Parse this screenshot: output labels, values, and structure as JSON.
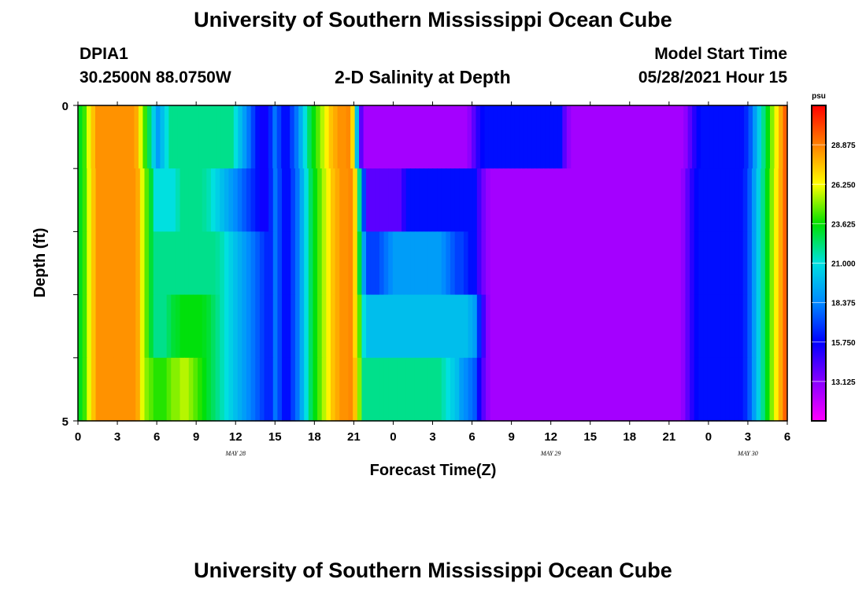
{
  "page": {
    "title": "University of Southern Mississippi Ocean Cube",
    "footer_title": "University of Southern Mississippi Ocean Cube",
    "station": "DPIA1",
    "coords": "30.2500N  88.0750W",
    "plot_title": "2-D Salinity at Depth",
    "model_start_label": "Model Start Time",
    "model_start_value": "05/28/2021 Hour 15"
  },
  "chart_data": {
    "type": "heatmap",
    "title": "2-D Salinity at Depth",
    "xlabel": "Forecast Time(Z)",
    "ylabel": "Depth (ft)",
    "x_tick_labels": [
      "0",
      "3",
      "6",
      "9",
      "12",
      "15",
      "18",
      "21",
      "0",
      "3",
      "6",
      "9",
      "12",
      "15",
      "18",
      "21",
      "0",
      "3",
      "6"
    ],
    "date_labels": [
      {
        "label": "MAY 28",
        "hour": 12
      },
      {
        "label": "MAY 29",
        "hour": 36
      },
      {
        "label": "MAY 30",
        "hour": 51
      }
    ],
    "x_range_hours": [
      0,
      54
    ],
    "y_tick_labels": [
      "0",
      "5"
    ],
    "y_range_ft": [
      0,
      5
    ],
    "depth_layers": 5,
    "colorbar": {
      "unit": "psu",
      "min": 10.5,
      "max": 31.5,
      "ticks": [
        "28.875",
        "26.250",
        "23.625",
        "21.000",
        "18.375",
        "15.750",
        "13.125"
      ],
      "tick_values": [
        28.875,
        26.25,
        23.625,
        21.0,
        18.375,
        15.75,
        13.125
      ]
    },
    "salinity_psu_by_layer": [
      [
        23.3,
        24.2,
        26.0,
        27.5,
        28.5,
        28.5,
        28.5,
        28.5,
        28.5,
        28.5,
        28.5,
        28.5,
        28.5,
        28.0,
        26.0,
        24.2,
        22.5,
        20.5,
        19.0,
        20.0,
        21.0,
        22.0,
        22.0,
        22.0,
        22.0,
        22.0,
        22.0,
        22.0,
        22.0,
        22.0,
        22.0,
        22.0,
        22.0,
        22.0,
        22.0,
        22.0,
        21.0,
        20.0,
        19.0,
        18.0,
        17.0,
        16.0,
        15.5,
        15.5,
        16.5,
        18.0,
        17.0,
        16.0,
        16.0,
        17.0,
        18.0,
        19.5,
        21.0,
        22.5,
        23.5,
        24.5,
        25.5,
        26.5,
        27.5,
        28.0,
        28.5,
        28.5,
        28.7,
        27.0,
        20.0,
        14.0,
        12.5,
        12.5,
        12.5,
        12.5,
        12.5,
        12.5,
        12.5,
        12.5,
        12.5,
        12.5,
        12.5,
        12.5,
        12.5,
        12.5,
        12.5,
        12.5,
        12.5,
        12.5,
        12.5,
        12.5,
        12.5,
        12.5,
        12.5,
        12.5,
        13.0,
        14.0,
        15.0,
        15.8,
        16.0,
        16.0,
        16.0,
        16.0,
        16.0,
        16.0,
        16.0,
        16.0,
        16.0,
        16.0,
        16.0,
        16.0,
        16.0,
        16.0,
        16.0,
        16.0,
        16.0,
        16.0,
        14.0,
        13.0,
        12.5,
        12.5,
        12.5,
        12.5,
        12.5,
        12.5,
        12.5,
        12.5,
        12.5,
        12.5,
        12.5,
        12.5,
        12.5,
        12.5,
        12.5,
        12.5,
        12.5,
        12.5,
        12.5,
        12.5,
        12.5,
        12.5,
        12.5,
        12.5,
        12.5,
        12.5,
        13.0,
        14.0,
        15.0,
        15.8,
        16.0,
        16.0,
        16.0,
        16.0,
        16.0,
        16.0,
        16.0,
        16.0,
        16.0,
        16.0,
        16.5,
        17.5,
        19.0,
        20.5,
        22.0,
        23.5,
        25.0,
        26.5,
        28.0,
        29.5
      ],
      [
        23.3,
        24.2,
        26.0,
        27.5,
        28.5,
        28.5,
        28.5,
        28.5,
        28.5,
        28.5,
        28.5,
        28.5,
        28.5,
        28.0,
        26.0,
        24.5,
        23.0,
        21.0,
        21.0,
        21.0,
        21.0,
        21.0,
        21.5,
        22.0,
        22.0,
        22.0,
        22.0,
        22.0,
        21.8,
        21.5,
        21.0,
        20.5,
        20.0,
        19.5,
        19.0,
        18.5,
        18.0,
        17.5,
        17.0,
        16.5,
        16.0,
        15.5,
        15.5,
        16.5,
        18.0,
        17.0,
        16.0,
        16.0,
        17.0,
        18.0,
        19.5,
        21.0,
        22.5,
        23.5,
        24.5,
        25.5,
        26.5,
        27.5,
        28.0,
        28.5,
        28.5,
        28.7,
        27.0,
        22.0,
        17.0,
        14.0,
        14.0,
        14.0,
        14.0,
        14.0,
        14.0,
        14.0,
        14.0,
        15.0,
        16.0,
        16.0,
        16.0,
        16.0,
        16.0,
        16.0,
        16.0,
        16.0,
        16.0,
        16.0,
        16.0,
        16.0,
        16.0,
        16.0,
        16.0,
        16.0,
        14.5,
        13.5,
        12.8,
        12.5,
        12.5,
        12.5,
        12.5,
        12.5,
        12.5,
        12.5,
        12.5,
        12.5,
        12.5,
        12.5,
        12.5,
        12.5,
        12.5,
        12.5,
        12.5,
        12.5,
        12.5,
        12.5,
        12.5,
        12.5,
        12.5,
        12.5,
        12.5,
        12.5,
        12.5,
        12.5,
        12.5,
        12.5,
        12.5,
        12.5,
        12.5,
        12.5,
        12.5,
        12.5,
        12.5,
        12.5,
        12.5,
        12.5,
        12.5,
        12.5,
        12.5,
        12.5,
        13.0,
        14.0,
        15.0,
        15.8,
        16.0,
        16.0,
        16.0,
        16.0,
        16.0,
        16.0,
        16.0,
        16.0,
        16.0,
        16.0,
        16.5,
        17.5,
        19.0,
        20.5,
        22.0,
        23.5,
        25.0,
        26.5,
        28.0,
        29.5
      ],
      [
        23.3,
        24.2,
        26.0,
        27.5,
        28.5,
        28.5,
        28.5,
        28.5,
        28.5,
        28.5,
        28.5,
        28.5,
        28.5,
        28.0,
        26.0,
        24.5,
        23.0,
        22.0,
        22.0,
        22.0,
        22.0,
        22.0,
        22.0,
        22.0,
        22.0,
        22.0,
        22.0,
        22.0,
        22.0,
        22.0,
        22.0,
        21.8,
        21.5,
        21.0,
        20.5,
        20.0,
        19.5,
        19.0,
        18.5,
        18.0,
        17.5,
        17.0,
        16.5,
        16.5,
        18.0,
        17.0,
        16.0,
        16.0,
        17.0,
        18.0,
        19.5,
        21.0,
        22.5,
        23.5,
        24.5,
        25.5,
        26.5,
        27.5,
        28.0,
        28.5,
        28.5,
        28.7,
        27.0,
        23.0,
        19.0,
        17.0,
        17.0,
        17.0,
        17.5,
        18.0,
        18.5,
        19.0,
        19.0,
        19.0,
        19.0,
        19.0,
        19.0,
        19.0,
        19.0,
        19.0,
        19.0,
        19.0,
        18.5,
        18.0,
        17.5,
        17.0,
        17.0,
        16.5,
        16.0,
        16.0,
        14.5,
        13.5,
        12.8,
        12.5,
        12.5,
        12.5,
        12.5,
        12.5,
        12.5,
        12.5,
        12.5,
        12.5,
        12.5,
        12.5,
        12.5,
        12.5,
        12.5,
        12.5,
        12.5,
        12.5,
        12.5,
        12.5,
        12.5,
        12.5,
        12.5,
        12.5,
        12.5,
        12.5,
        12.5,
        12.5,
        12.5,
        12.5,
        12.5,
        12.5,
        12.5,
        12.5,
        12.5,
        12.5,
        12.5,
        12.5,
        12.5,
        12.5,
        12.5,
        12.5,
        12.5,
        12.5,
        13.0,
        14.0,
        15.0,
        15.8,
        16.0,
        16.0,
        16.0,
        16.0,
        16.0,
        16.0,
        16.0,
        16.0,
        16.0,
        16.0,
        16.5,
        17.5,
        19.0,
        20.5,
        22.0,
        23.5,
        25.0,
        26.5,
        28.0,
        29.5
      ],
      [
        23.3,
        24.2,
        26.0,
        27.5,
        28.5,
        28.5,
        28.5,
        28.5,
        28.5,
        28.5,
        28.5,
        28.5,
        28.5,
        28.0,
        26.0,
        24.5,
        23.0,
        22.0,
        22.0,
        22.0,
        22.5,
        23.0,
        23.2,
        23.5,
        23.5,
        23.5,
        23.5,
        23.5,
        23.3,
        23.0,
        22.5,
        22.0,
        21.5,
        21.0,
        20.5,
        20.0,
        19.5,
        19.0,
        18.5,
        18.0,
        17.5,
        17.0,
        16.5,
        16.5,
        18.0,
        17.0,
        16.0,
        16.0,
        17.0,
        18.0,
        19.5,
        21.0,
        22.5,
        23.5,
        24.5,
        25.5,
        26.5,
        27.5,
        28.0,
        28.5,
        28.5,
        28.7,
        27.0,
        24.5,
        21.0,
        20.0,
        20.0,
        20.0,
        20.0,
        20.0,
        20.0,
        20.0,
        20.0,
        20.0,
        20.0,
        20.0,
        20.0,
        20.0,
        20.0,
        20.0,
        20.0,
        20.0,
        20.0,
        20.0,
        20.0,
        20.0,
        20.0,
        20.0,
        19.5,
        19.0,
        16.5,
        14.5,
        13.0,
        12.5,
        12.5,
        12.5,
        12.5,
        12.5,
        12.5,
        12.5,
        12.5,
        12.5,
        12.5,
        12.5,
        12.5,
        12.5,
        12.5,
        12.5,
        12.5,
        12.5,
        12.5,
        12.5,
        12.5,
        12.5,
        12.5,
        12.5,
        12.5,
        12.5,
        12.5,
        12.5,
        12.5,
        12.5,
        12.5,
        12.5,
        12.5,
        12.5,
        12.5,
        12.5,
        12.5,
        12.5,
        12.5,
        12.5,
        12.5,
        12.5,
        12.5,
        12.5,
        13.0,
        14.0,
        15.0,
        15.8,
        16.0,
        16.0,
        16.0,
        16.0,
        16.0,
        16.0,
        16.0,
        16.0,
        16.0,
        16.0,
        16.5,
        17.5,
        19.0,
        20.5,
        22.0,
        23.5,
        25.0,
        26.5,
        28.0,
        29.5
      ],
      [
        23.3,
        24.2,
        26.0,
        27.5,
        28.5,
        28.5,
        28.5,
        28.5,
        28.5,
        28.5,
        28.5,
        28.5,
        28.5,
        28.0,
        26.0,
        25.0,
        24.5,
        24.0,
        24.0,
        24.0,
        24.5,
        25.0,
        25.0,
        25.5,
        25.5,
        25.0,
        24.5,
        24.0,
        23.5,
        23.0,
        22.5,
        22.0,
        21.5,
        21.0,
        20.5,
        20.0,
        19.5,
        19.0,
        18.5,
        18.0,
        17.5,
        17.0,
        16.5,
        16.5,
        18.0,
        17.0,
        16.0,
        16.0,
        17.0,
        18.0,
        19.5,
        21.0,
        22.5,
        23.5,
        24.5,
        25.5,
        26.5,
        27.5,
        28.0,
        28.5,
        28.5,
        28.7,
        27.5,
        25.0,
        22.0,
        22.0,
        22.0,
        22.0,
        22.0,
        22.0,
        22.0,
        22.0,
        22.0,
        22.0,
        22.0,
        22.0,
        22.0,
        22.0,
        22.0,
        22.0,
        22.0,
        22.0,
        21.5,
        21.0,
        20.5,
        20.0,
        19.0,
        18.5,
        18.0,
        17.5,
        15.5,
        14.0,
        13.0,
        12.5,
        12.5,
        12.5,
        12.5,
        12.5,
        12.5,
        12.5,
        12.5,
        12.5,
        12.5,
        12.5,
        12.5,
        12.5,
        12.5,
        12.5,
        12.5,
        12.5,
        12.5,
        12.5,
        12.5,
        12.5,
        12.5,
        12.5,
        12.5,
        12.5,
        12.5,
        12.5,
        12.5,
        12.5,
        12.5,
        12.5,
        12.5,
        12.5,
        12.5,
        12.5,
        12.5,
        12.5,
        12.5,
        12.5,
        12.5,
        12.5,
        12.5,
        12.5,
        13.0,
        14.0,
        15.0,
        15.8,
        16.0,
        16.0,
        16.0,
        16.0,
        16.0,
        16.0,
        16.0,
        16.0,
        16.0,
        16.0,
        16.5,
        17.5,
        19.0,
        20.5,
        22.0,
        23.5,
        25.0,
        26.5,
        28.0,
        29.5
      ]
    ]
  }
}
